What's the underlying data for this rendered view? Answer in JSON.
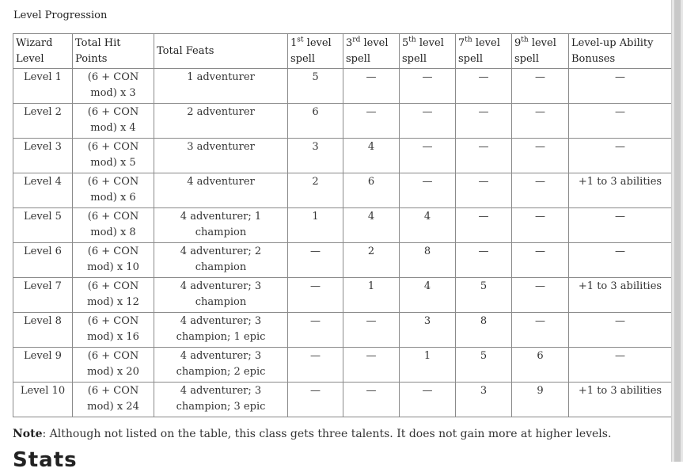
{
  "caption": "Level Progression",
  "headers": [
    {
      "text": "Wizard Level",
      "sup": "",
      "rest": ""
    },
    {
      "text": "Total Hit Points",
      "sup": "",
      "rest": ""
    },
    {
      "text": "Total Feats",
      "sup": "",
      "rest": ""
    },
    {
      "text": "1",
      "sup": "st",
      "rest": " level spell"
    },
    {
      "text": "3",
      "sup": "rd",
      "rest": " level spell"
    },
    {
      "text": "5",
      "sup": "th",
      "rest": " level spell"
    },
    {
      "text": "7",
      "sup": "th",
      "rest": " level spell"
    },
    {
      "text": "9",
      "sup": "th",
      "rest": " level spell"
    },
    {
      "text": "Level-up Ability Bonuses",
      "sup": "",
      "rest": ""
    }
  ],
  "rows": [
    [
      "Level 1",
      "(6 + CON mod) x 3",
      "1 adventurer",
      "5",
      "—",
      "—",
      "—",
      "—",
      "—"
    ],
    [
      "Level 2",
      "(6 + CON mod) x 4",
      "2 adventurer",
      "6",
      "—",
      "—",
      "—",
      "—",
      "—"
    ],
    [
      "Level 3",
      "(6 + CON mod) x 5",
      "3 adventurer",
      "3",
      "4",
      "—",
      "—",
      "—",
      "—"
    ],
    [
      "Level 4",
      "(6 + CON mod) x 6",
      "4 adventurer",
      "2",
      "6",
      "—",
      "—",
      "—",
      "+1 to 3 abilities"
    ],
    [
      "Level 5",
      "(6 + CON mod) x 8",
      "4 adventurer; 1 champion",
      "1",
      "4",
      "4",
      "—",
      "—",
      "—"
    ],
    [
      "Level 6",
      "(6 + CON mod) x 10",
      "4 adventurer; 2 champion",
      "—",
      "2",
      "8",
      "—",
      "—",
      "—"
    ],
    [
      "Level 7",
      "(6 + CON mod) x 12",
      "4 adventurer; 3 champion",
      "—",
      "1",
      "4",
      "5",
      "—",
      "+1 to 3 abilities"
    ],
    [
      "Level 8",
      "(6 + CON mod) x 16",
      "4 adventurer; 3 champion; 1 epic",
      "—",
      "—",
      "3",
      "8",
      "—",
      "—"
    ],
    [
      "Level 9",
      "(6 + CON mod) x 20",
      "4 adventurer; 3 champion; 2 epic",
      "—",
      "—",
      "1",
      "5",
      "6",
      "—"
    ],
    [
      "Level 10",
      "(6 + CON mod) x 24",
      "4 adventurer; 3 champion; 3 epic",
      "—",
      "—",
      "—",
      "3",
      "9",
      "+1 to 3 abilities"
    ]
  ],
  "note": {
    "label": "Note",
    "text": ": Although not listed on the table, this class gets three talents. It does not gain more at higher levels."
  },
  "next_heading": "Stats"
}
